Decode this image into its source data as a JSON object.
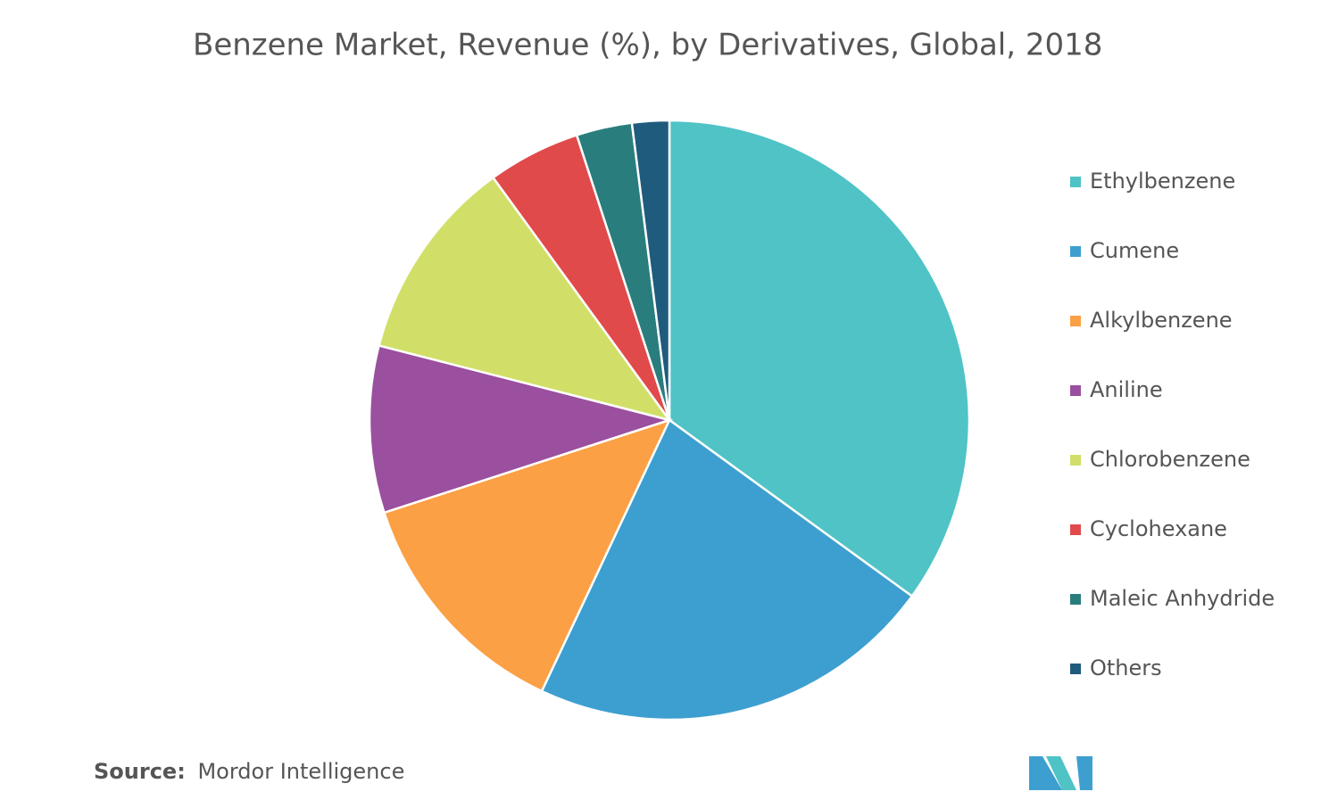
{
  "chart_data": {
    "type": "pie",
    "title": "Benzene Market, Revenue (%), by Derivatives, Global, 2018",
    "categories": [
      "Ethylbenzene",
      "Cumene",
      "Alkylbenzene",
      "Aniline",
      "Chlorobenzene",
      "Cyclohexane",
      "Maleic Anhydride",
      "Others"
    ],
    "values": [
      35,
      22,
      13,
      9,
      11,
      5,
      3,
      2
    ],
    "colors": [
      "#4fc3c6",
      "#3d9fd0",
      "#fba044",
      "#9b4f9f",
      "#d1df68",
      "#e04a4b",
      "#2a7d7d",
      "#1f5b7d"
    ],
    "legend": "right"
  },
  "source": {
    "label": "Source:",
    "text": "Mordor Intelligence"
  }
}
